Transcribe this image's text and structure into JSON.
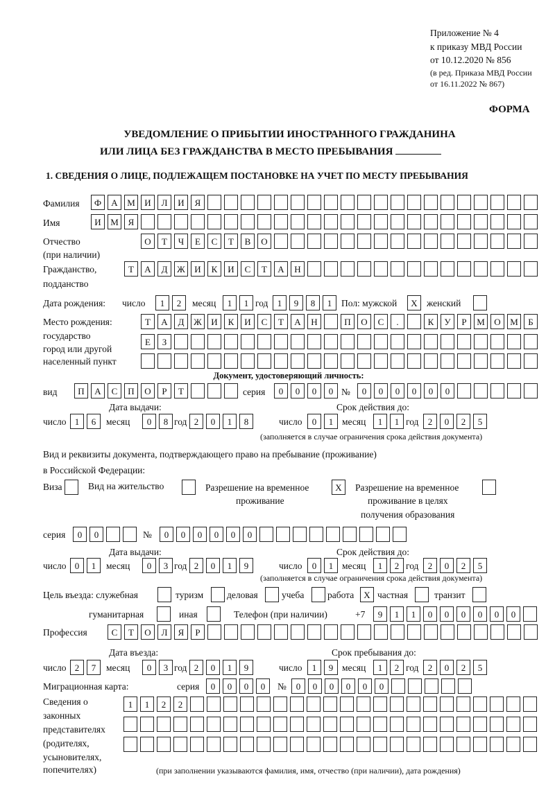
{
  "header": {
    "appendix": "Приложение № 4",
    "order": "к приказу МВД России",
    "date": "от 10.12.2020 № 856",
    "edition1": "(в ред. Приказа МВД России",
    "edition2": "от 16.11.2022 № 867)",
    "form_label": "ФОРМА"
  },
  "title": {
    "line1": "УВЕДОМЛЕНИЕ О ПРИБЫТИИ ИНОСТРАННОГО ГРАЖДАНИНА",
    "line2": "ИЛИ ЛИЦА БЕЗ ГРАЖДАНСТВА В МЕСТО ПРЕБЫВАНИЯ"
  },
  "section1": {
    "heading": "1. СВЕДЕНИЯ О ЛИЦЕ, ПОДЛЕЖАЩЕМ ПОСТАНОВКЕ НА УЧЕТ ПО МЕСТУ ПРЕБЫВАНИЯ"
  },
  "person": {
    "surname_label": "Фамилия",
    "surname": "ФАМИЛИЯ",
    "name_label": "Имя",
    "name": "ИМЯ",
    "patronymic_label": "Отчество",
    "patronymic_label2": "(при наличии)",
    "patronymic": "ОТЧЕСТВО",
    "citizenship_label": "Гражданство,",
    "citizenship_label2": "подданство",
    "citizenship": "ТАДЖИКИСТАН",
    "birth_label": "Дата рождения:",
    "day_label": "число",
    "month_label": "месяц",
    "year_label": "год",
    "birth_day": "12",
    "birth_month": "11",
    "birth_year": "1981",
    "sex_label": "Пол: мужской",
    "male": "X",
    "female_label": "женский",
    "female": "",
    "birthplace_label1": "Место рождения:",
    "birthplace_label2": "государство",
    "birthplace_label3": "город или другой",
    "birthplace_label4": "населенный пункт",
    "birthplace_row1": "ТАДЖИКИСТАН ПОС. КУРМОМБ",
    "birthplace_row2": "ЕЗ",
    "birthplace_row3": ""
  },
  "id_document": {
    "heading": "Документ, удостоверяющий личность:",
    "type_label": "вид",
    "type": "ПАСПОРТ",
    "series_label": "серия",
    "series": "0000",
    "number_label": "№",
    "number": "000000",
    "issue_label": "Дата выдачи:",
    "valid_label": "Срок действия до:",
    "issue_day": "16",
    "issue_month": "08",
    "issue_year": "2018",
    "valid_day": "01",
    "valid_month": "11",
    "valid_year": "2025",
    "note": "(заполняется в случае ограничения срока действия документа)"
  },
  "stay_document": {
    "heading1": "Вид и реквизиты документа, подтверждающего право на пребывание (проживание)",
    "heading2": "в Российской Федерации:",
    "visa_label": "Виза",
    "visa": "",
    "residence_label": "Вид на жительство",
    "residence": "",
    "temp_label1": "Разрешение на временное",
    "temp_label2": "проживание",
    "temp": "X",
    "edu_label1": "Разрешение на временное",
    "edu_label2": "проживание в целях",
    "edu_label3": "получения образования",
    "edu": "",
    "series_label": "серия",
    "series": "00",
    "number_label": "№",
    "number": "000000",
    "issue_label": "Дата выдачи:",
    "valid_label": "Срок действия до:",
    "issue_day": "01",
    "issue_month": "03",
    "issue_year": "2019",
    "valid_day": "01",
    "valid_month": "12",
    "valid_year": "2025",
    "note": "(заполняется в случае ограничения срока действия документа)"
  },
  "purpose": {
    "label": "Цель въезда: служебная",
    "official": "",
    "tourism_label": "туризм",
    "tourism": "",
    "business_label": "деловая",
    "business": "",
    "study_label": "учеба",
    "study": "",
    "work_label": "работа",
    "work": "X",
    "private_label": "частная",
    "private": "",
    "transit_label": "транзит",
    "transit": "",
    "humanitarian_label": "гуманитарная",
    "humanitarian": "",
    "other_label": "иная",
    "other": ""
  },
  "phone": {
    "label": "Телефон (при наличии)",
    "prefix": "+7",
    "number": "911000000"
  },
  "profession": {
    "label": "Профессия",
    "value": "СТОЛЯР"
  },
  "entry": {
    "entry_label": "Дата въезда:",
    "stay_label": "Срок пребывания до:",
    "entry_day": "27",
    "entry_month": "03",
    "entry_year": "2019",
    "stay_day": "19",
    "stay_month": "12",
    "stay_year": "2025"
  },
  "migration_card": {
    "label": "Миграционная карта:",
    "series_label": "серия",
    "series": "0000",
    "number_label": "№",
    "number": "000000"
  },
  "representatives": {
    "label1": "Сведения о",
    "label2": "законных",
    "label3": "представителях",
    "label4": "(родителях,",
    "label5": "усыновителях,",
    "label6": "попечителях)",
    "row1": "1122",
    "row2": "",
    "row3": "",
    "note": "(при заполнении указываются фамилия, имя, отчество (при наличии), дата рождения)"
  }
}
